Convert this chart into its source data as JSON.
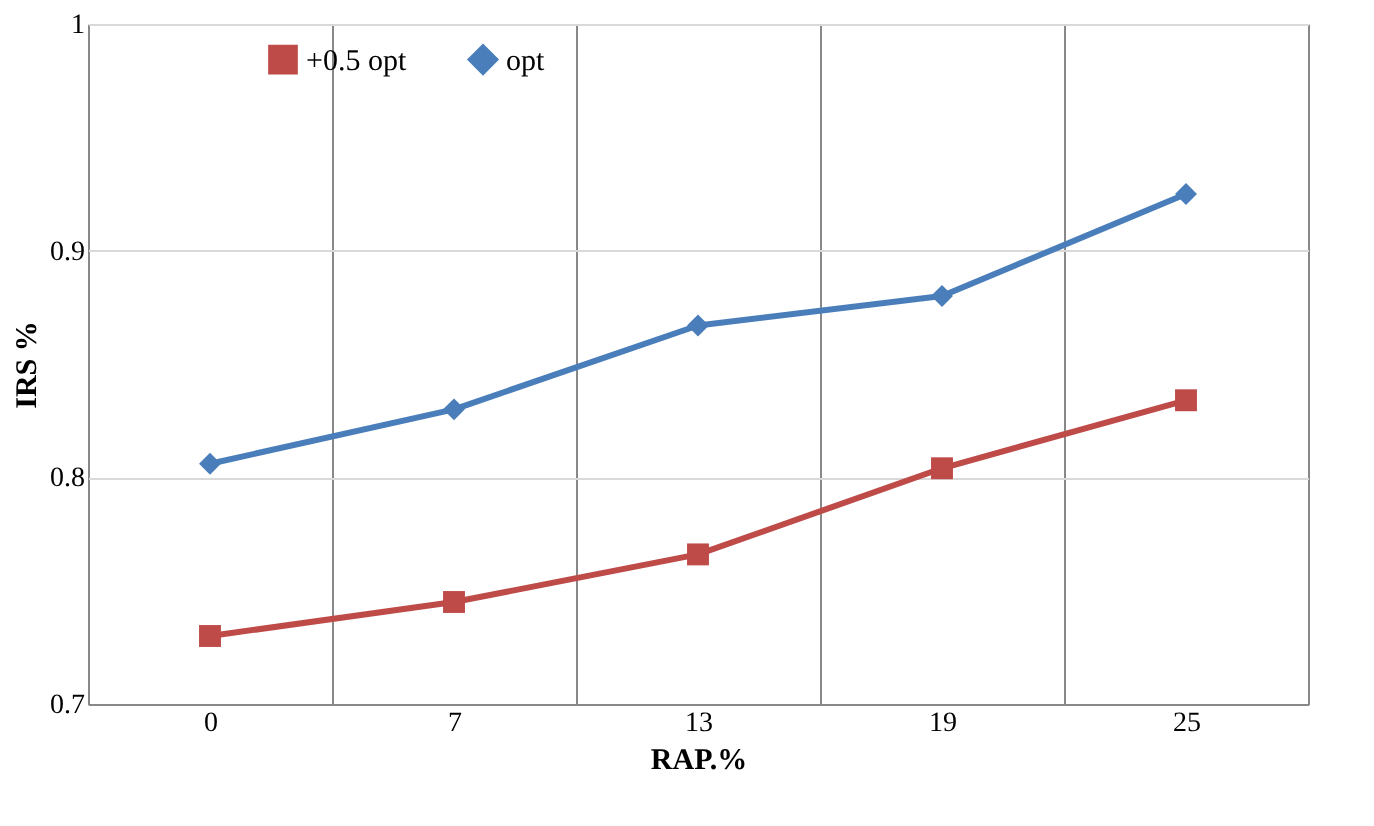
{
  "chart_data": {
    "type": "line",
    "xlabel": "RAP.%",
    "ylabel": "IRS %",
    "categories": [
      "0",
      "7",
      "13",
      "19",
      "25"
    ],
    "series": [
      {
        "name": "+0.5 opt",
        "color": "#be4b48",
        "marker": "square",
        "values": [
          0.73,
          0.745,
          0.766,
          0.804,
          0.834
        ]
      },
      {
        "name": "opt",
        "color": "#4a7ebb",
        "marker": "diamond",
        "values": [
          0.806,
          0.83,
          0.867,
          0.88,
          0.925
        ]
      }
    ],
    "ylim": [
      0.7,
      1
    ],
    "yticks": [
      0.7,
      0.8,
      0.9,
      1
    ],
    "grid": true,
    "legend": "top left",
    "line_style": "solid"
  }
}
